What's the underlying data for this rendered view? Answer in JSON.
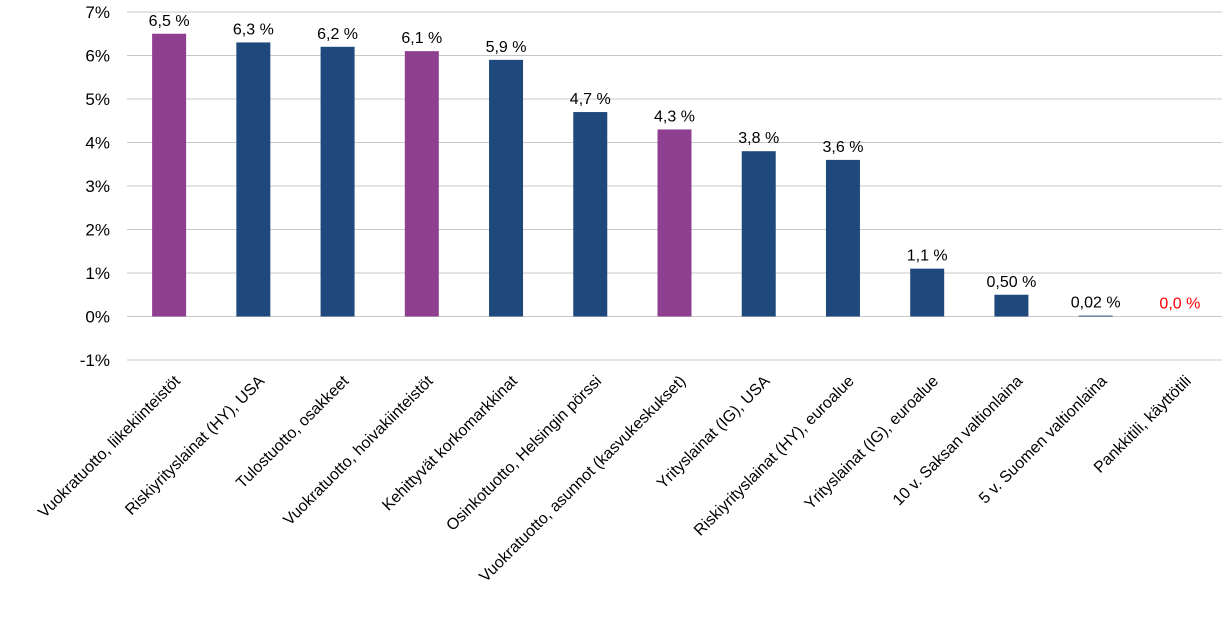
{
  "chart_data": {
    "type": "bar",
    "categories": [
      "Vuokratuotto, liikekiinteistöt",
      "Riskiyrityslainat (HY), USA",
      "Tulostuotto, osakkeet",
      "Vuokratuotto, hoivakiinteistöt",
      "Kehittyvät korkomarkkinat",
      "Osinkotuotto, Helsingin pörssi",
      "Vuokratuotto, asunnot (kasvukeskukset)",
      "Yrityslainat (IG), USA",
      "Riskiyrityslainat (HY), euroalue",
      "Yrityslainat (IG), euroalue",
      "10 v. Saksan valtionlaina",
      "5 v. Suomen valtionlaina",
      "Pankkitili, käyttötili"
    ],
    "values": [
      6.5,
      6.3,
      6.2,
      6.1,
      5.9,
      4.7,
      4.3,
      3.8,
      3.6,
      1.1,
      0.5,
      0.02,
      0.0
    ],
    "data_labels": [
      "6,5 %",
      "6,3 %",
      "6,2 %",
      "6,1 %",
      "5,9 %",
      "4,7 %",
      "4,3 %",
      "3,8 %",
      "3,6 %",
      "1,1 %",
      "0,50 %",
      "0,02 %",
      "0,0 %"
    ],
    "bar_colors": [
      "#8e3f8f",
      "#1f497d",
      "#1f497d",
      "#8e3f8f",
      "#1f497d",
      "#1f497d",
      "#8e3f8f",
      "#1f497d",
      "#1f497d",
      "#1f497d",
      "#1f497d",
      "#1f497d",
      "#1f497d"
    ],
    "label_colors": [
      "#000000",
      "#000000",
      "#000000",
      "#000000",
      "#000000",
      "#000000",
      "#000000",
      "#000000",
      "#000000",
      "#000000",
      "#000000",
      "#000000",
      "#ff0000"
    ],
    "y_ticks": [
      -1,
      0,
      1,
      2,
      3,
      4,
      5,
      6,
      7
    ],
    "y_tick_labels": [
      "-1%",
      "0%",
      "1%",
      "2%",
      "3%",
      "4%",
      "5%",
      "6%",
      "7%"
    ],
    "ylim": [
      -1,
      7
    ],
    "grid": true,
    "gridline_color": "#c8c8c8",
    "title": "",
    "xlabel": "",
    "ylabel": ""
  }
}
